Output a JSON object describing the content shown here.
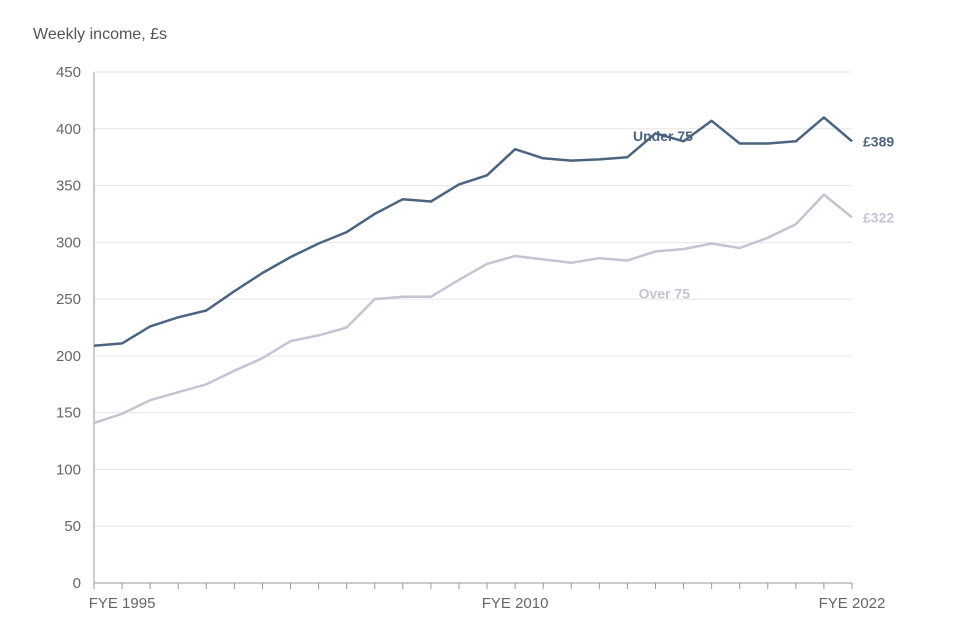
{
  "chart_data": {
    "type": "line",
    "title": "",
    "ylabel": "Weekly income, £s",
    "xlabel": "",
    "ylim": [
      0,
      450
    ],
    "yticks": [
      "0",
      "50",
      "100",
      "150",
      "200",
      "250",
      "300",
      "350",
      "400",
      "450"
    ],
    "xtick_labels": [
      {
        "label": "FYE 1995",
        "index": 1
      },
      {
        "label": "FYE 2010",
        "index": 15
      },
      {
        "label": "FYE 2022",
        "index": 27
      }
    ],
    "x_count": 28,
    "series": [
      {
        "name": "Under 75",
        "color": "#4d6481",
        "end_label": "£389",
        "values": [
          209,
          211,
          226,
          234,
          240,
          257,
          273,
          287,
          299,
          309,
          325,
          338,
          336,
          351,
          359,
          382,
          374,
          372,
          373,
          375,
          396,
          389,
          407,
          387,
          387,
          389,
          410,
          389
        ]
      },
      {
        "name": "Over 75",
        "color": "#c2c5d2",
        "end_label": "£322",
        "values": [
          141,
          149,
          161,
          168,
          175,
          187,
          198,
          213,
          218,
          225,
          250,
          252,
          252,
          267,
          281,
          288,
          285,
          282,
          286,
          284,
          292,
          294,
          299,
          295,
          304,
          316,
          342,
          322
        ]
      }
    ],
    "grid": true
  }
}
